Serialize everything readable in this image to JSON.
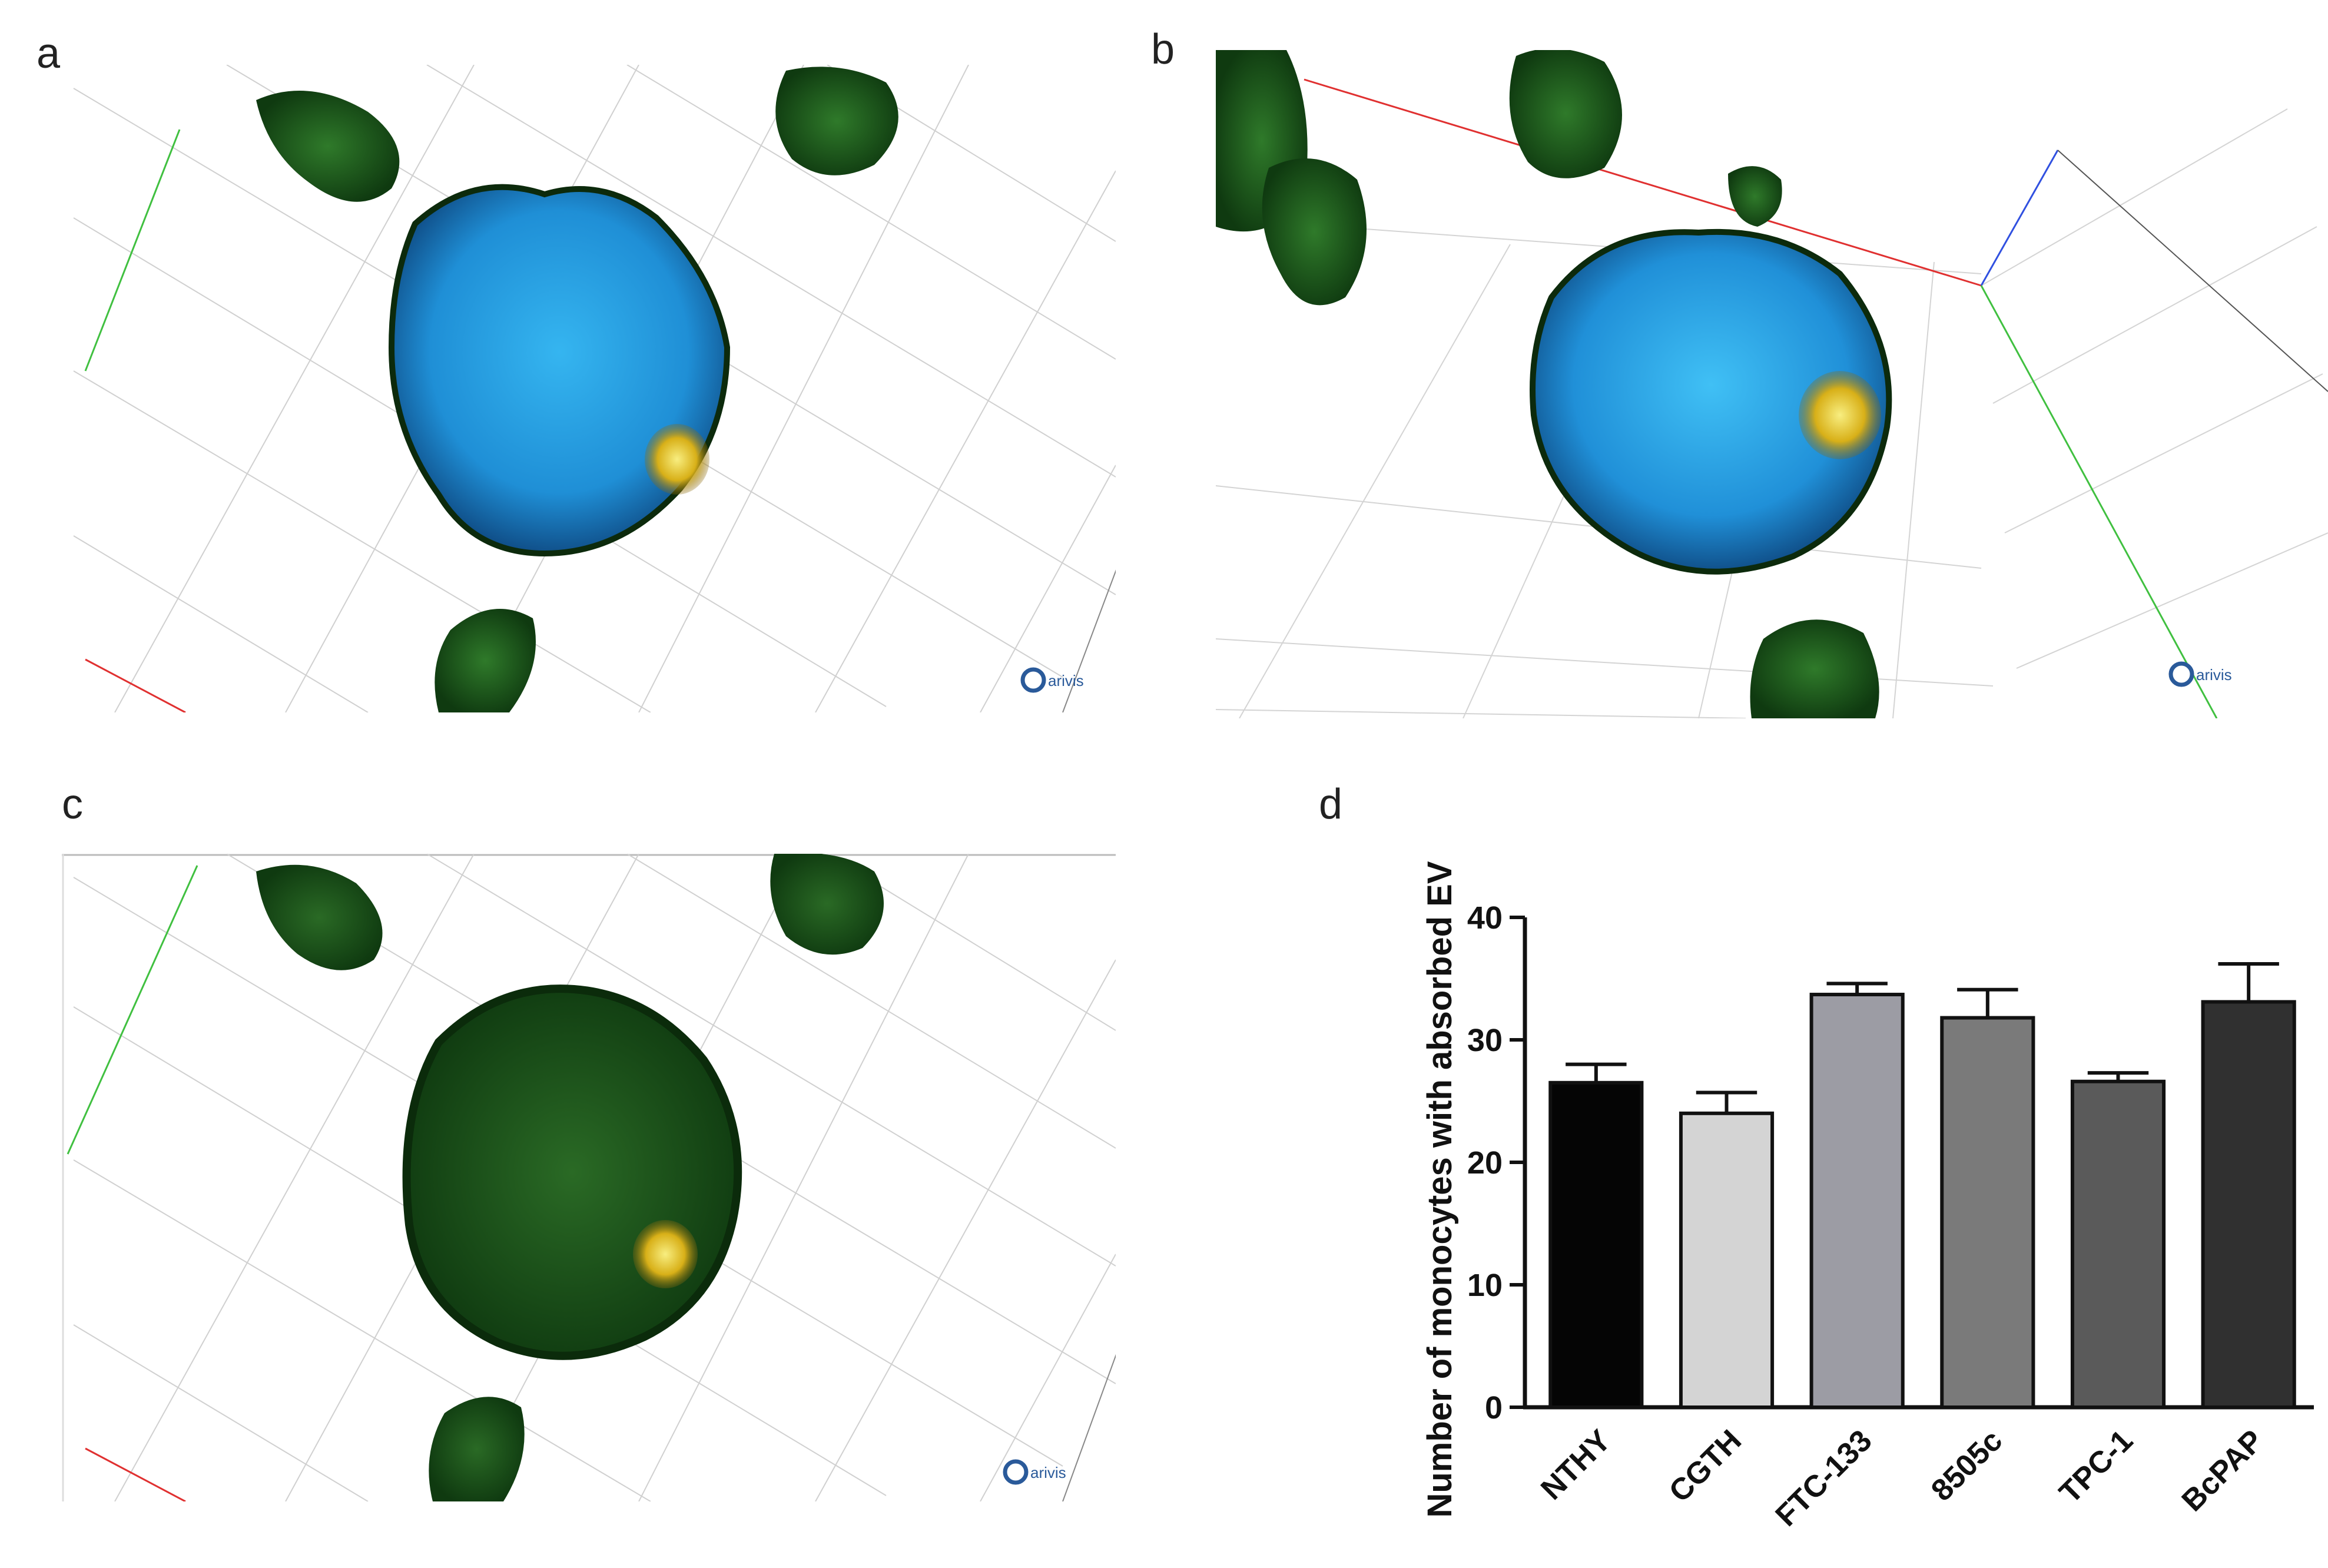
{
  "panels": [
    {
      "label": "a",
      "watermark": "arivis"
    },
    {
      "label": "b",
      "watermark": "arivis"
    },
    {
      "label": "c",
      "watermark": "arivis"
    },
    {
      "label": "d"
    }
  ],
  "colors": {
    "nucleus_blue": "#2fa8e8",
    "cell_green": "#1f5a1c",
    "ev_yellow": "#e0c020",
    "grid": "#cfcfcf",
    "axis_red": "#e03030",
    "axis_green": "#40c040",
    "axis_blue": "#3050e0"
  },
  "chart_data": {
    "type": "bar",
    "categories": [
      "NTHY",
      "CGTH",
      "FTC-133",
      "8505c",
      "TPC-1",
      "BcPAP"
    ],
    "values": [
      26.5,
      24.0,
      33.7,
      31.8,
      26.6,
      33.1
    ],
    "errors": [
      1.5,
      1.7,
      0.9,
      2.3,
      0.7,
      3.1
    ],
    "bar_colors": [
      "#050505",
      "#d4d4d4",
      "#9c9ca4",
      "#7a7a7a",
      "#5a5a5a",
      "#303030"
    ],
    "ylabel": "Number of monocytes with absorbed EV",
    "xlabel": "",
    "title": "",
    "ylim": [
      0,
      40
    ],
    "yticks": [
      0,
      10,
      20,
      30,
      40
    ],
    "grid": false
  }
}
